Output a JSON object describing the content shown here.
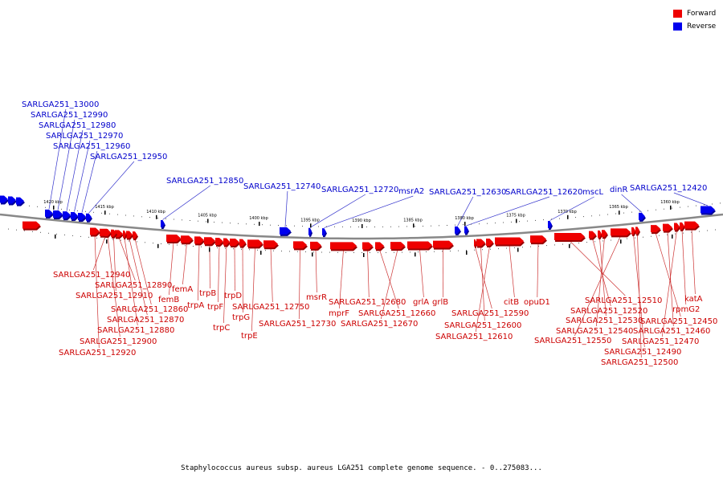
{
  "legend": {
    "forward": {
      "label": "Forward",
      "color": "#ee0000"
    },
    "reverse": {
      "label": "Reverse",
      "color": "#0000ee"
    }
  },
  "caption": "Staphylococcus aureus subsp. aureus LGA251 complete genome sequence. - 0..275083...",
  "axis": {
    "ticks": [
      "1420 kbp",
      "1415 kbp",
      "1410 kbp",
      "1405 kbp",
      "1400 kbp",
      "1395 kbp",
      "1390 kbp",
      "1385 kbp",
      "1380 kbp",
      "1375 kbp",
      "1370 kbp",
      "1365 kbp",
      "1360 kbp"
    ]
  },
  "reverse_genes": [
    "SARLGA251_13000",
    "SARLGA251_12990",
    "SARLGA251_12980",
    "SARLGA251_12970",
    "SARLGA251_12960",
    "SARLGA251_12950",
    "SARLGA251_12850",
    "SARLGA251_12740",
    "SARLGA251_12720",
    "msrA2",
    "SARLGA251_12630",
    "SARLGA251_12620",
    "mscL",
    "dinR",
    "SARLGA251_12420"
  ],
  "forward_genes": [
    "SARLGA251_12940",
    "SARLGA251_12890",
    "SARLGA251_12910",
    "SARLGA251_12860",
    "SARLGA251_12870",
    "SARLGA251_12880",
    "SARLGA251_12900",
    "SARLGA251_12920",
    "femB",
    "femA",
    "trpA",
    "trpB",
    "trpF",
    "trpC",
    "trpD",
    "trpG",
    "trpE",
    "SARLGA251_12750",
    "SARLGA251_12730",
    "msrR",
    "mprF",
    "SARLGA251_12680",
    "SARLGA251_12660",
    "SARLGA251_12670",
    "grlA",
    "grlB",
    "SARLGA251_12590",
    "SARLGA251_12600",
    "SARLGA251_12610",
    "citB",
    "opuD1",
    "SARLGA251_12510",
    "SARLGA251_12520",
    "SARLGA251_12530",
    "SARLGA251_12540",
    "SARLGA251_12550",
    "SARLGA251_12450",
    "SARLGA251_12460",
    "SARLGA251_12470",
    "SARLGA251_12490",
    "SARLGA251_12500",
    "rpmG2",
    "katA"
  ]
}
